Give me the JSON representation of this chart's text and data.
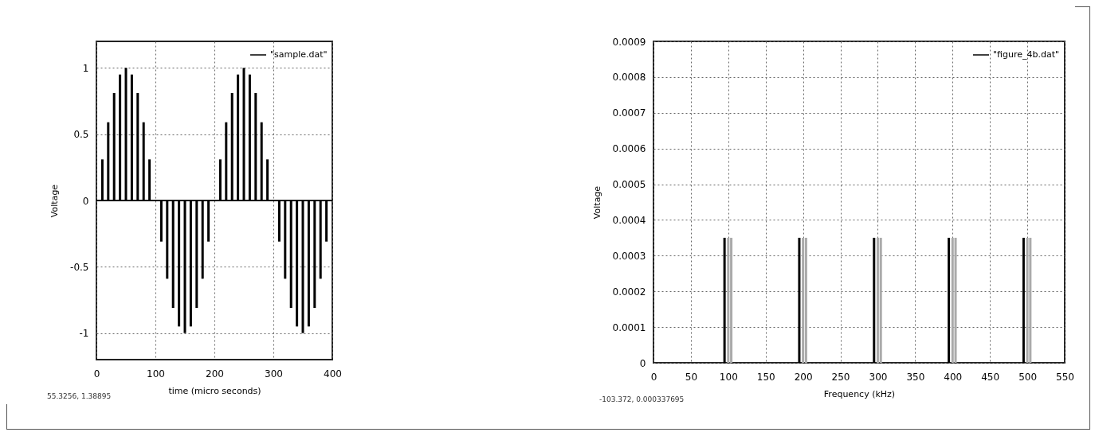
{
  "chart_data": [
    {
      "type": "bar",
      "xlabel": "time (micro seconds)",
      "ylabel": "Voltage",
      "annotations": [
        "55.3256, 1.38895"
      ],
      "x": [
        10,
        20,
        30,
        40,
        50,
        60,
        70,
        80,
        90,
        110,
        120,
        130,
        140,
        150,
        160,
        170,
        180,
        190,
        210,
        220,
        230,
        240,
        250,
        260,
        270,
        280,
        290,
        310,
        320,
        330,
        340,
        350,
        360,
        370,
        380,
        390
      ],
      "series": [
        {
          "name": "\"sample.dat\"",
          "color": "#000000",
          "values": [
            0.31,
            0.59,
            0.81,
            0.95,
            1,
            0.95,
            0.81,
            0.59,
            0.31,
            -0.31,
            -0.59,
            -0.81,
            -0.95,
            -1,
            -0.95,
            -0.81,
            -0.59,
            -0.31,
            0.31,
            0.59,
            0.81,
            0.95,
            1,
            0.95,
            0.81,
            0.59,
            0.31,
            -0.31,
            -0.59,
            -0.81,
            -0.95,
            -1,
            -0.95,
            -0.81,
            -0.59,
            -0.31
          ]
        }
      ],
      "xlim": [
        0,
        400
      ],
      "xticks": [
        0,
        100,
        200,
        300,
        400
      ],
      "ylim": [
        -1.2,
        1.2
      ],
      "yticks": [
        -1,
        -0.5,
        0,
        0.5,
        1
      ],
      "ref_lines": [
        {
          "axis": "y",
          "value": 0,
          "color": "#000000"
        }
      ],
      "grid": true,
      "legend": "top right"
    },
    {
      "type": "bar",
      "xlabel": "Frequency (kHz)",
      "ylabel": "Voltage",
      "annotations": [
        "-103.372, 0.000337695"
      ],
      "x": [
        95,
        100,
        104,
        195,
        200,
        204,
        295,
        300,
        304,
        395,
        400,
        404,
        495,
        500,
        504
      ],
      "series": [
        {
          "name": "\"figure_4b.dat\"",
          "color": "#000000",
          "values": [
            0.00035,
            0.00035,
            0.00035,
            0.00035,
            0.00035,
            0.00035,
            0.00035,
            0.00035,
            0.00035,
            0.00035,
            0.00035,
            0.00035,
            0.00035,
            0.00035,
            0.00035
          ],
          "colors": [
            "#000000",
            "#aaaaaa",
            "#aaaaaa",
            "#000000",
            "#aaaaaa",
            "#aaaaaa",
            "#000000",
            "#aaaaaa",
            "#aaaaaa",
            "#000000",
            "#aaaaaa",
            "#aaaaaa",
            "#000000",
            "#aaaaaa",
            "#aaaaaa"
          ]
        }
      ],
      "xlim": [
        0,
        550
      ],
      "xticks": [
        0,
        50,
        100,
        150,
        200,
        250,
        300,
        350,
        400,
        450,
        500,
        550
      ],
      "ylim": [
        0,
        0.0009
      ],
      "yticks": [
        0,
        0.0001,
        0.0002,
        0.0003,
        0.0004,
        0.0005,
        0.0006,
        0.0007,
        0.0008,
        0.0009
      ],
      "grid": true,
      "legend": "top right"
    }
  ]
}
